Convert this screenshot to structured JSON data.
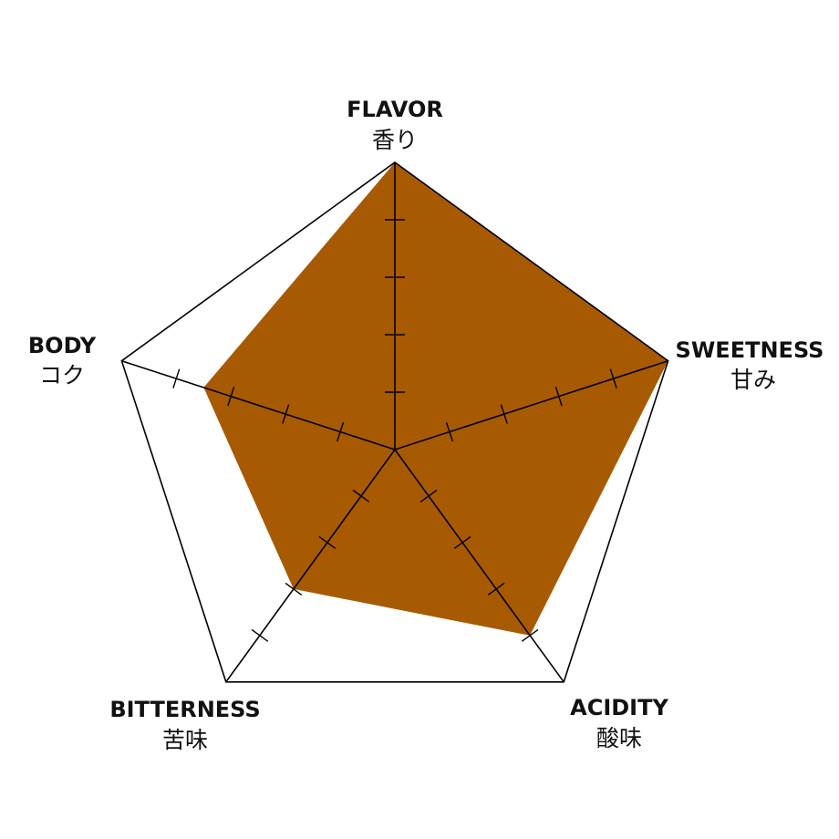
{
  "chart_data": {
    "type": "radar",
    "max": 5,
    "ticks": [
      1,
      2,
      3,
      4
    ],
    "fill_color": "#A85A03",
    "line_color": "#000000",
    "axes": [
      {
        "label": "FLAVOR",
        "sublabel": "香り",
        "value": 5
      },
      {
        "label": "SWEETNESS",
        "sublabel": "甘み",
        "value": 5
      },
      {
        "label": "ACIDITY",
        "sublabel": "酸味",
        "value": 4
      },
      {
        "label": "BITTERNESS",
        "sublabel": "苦味",
        "value": 3
      },
      {
        "label": "BODY",
        "sublabel": "コク",
        "value": 3.5
      }
    ]
  }
}
